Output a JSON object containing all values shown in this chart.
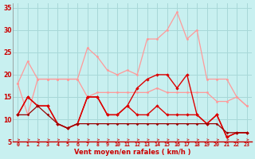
{
  "x": [
    0,
    1,
    2,
    3,
    4,
    5,
    6,
    7,
    8,
    9,
    10,
    11,
    12,
    13,
    14,
    15,
    16,
    17,
    18,
    19,
    20,
    21,
    22,
    23
  ],
  "series": {
    "rafales_light": [
      18,
      23,
      19,
      19,
      19,
      19,
      19,
      26,
      24,
      21,
      20,
      21,
      20,
      28,
      28,
      30,
      34,
      28,
      30,
      19,
      19,
      19,
      15,
      13
    ],
    "moyen_light": [
      18,
      11,
      19,
      19,
      19,
      19,
      19,
      15,
      16,
      16,
      16,
      16,
      16,
      16,
      17,
      16,
      16,
      16,
      16,
      16,
      14,
      14,
      15,
      13
    ],
    "rafales_dark": [
      11,
      15,
      13,
      13,
      9,
      8,
      9,
      15,
      15,
      11,
      11,
      13,
      17,
      19,
      20,
      20,
      17,
      20,
      11,
      9,
      11,
      6,
      7,
      7
    ],
    "moyen_dark1": [
      11,
      15,
      13,
      13,
      9,
      8,
      9,
      15,
      15,
      11,
      11,
      13,
      11,
      11,
      13,
      11,
      11,
      11,
      11,
      9,
      11,
      6,
      7,
      7
    ],
    "moyen_dark2": [
      11,
      11,
      13,
      11,
      9,
      8,
      9,
      9,
      9,
      9,
      9,
      9,
      9,
      9,
      9,
      9,
      9,
      9,
      9,
      9,
      9,
      7,
      7,
      7
    ]
  },
  "xlabel": "Vent moyen/en rafales ( km/h )",
  "ylim": [
    5,
    36
  ],
  "xlim": [
    -0.5,
    23.5
  ],
  "yticks": [
    5,
    10,
    15,
    20,
    25,
    30,
    35
  ],
  "bg_color": "#c8f0f0",
  "grid_color": "#a8d8d8",
  "color_light": "#ff9999",
  "color_dark": "#dd0000",
  "color_darkest": "#990000",
  "arrow_color": "#cc4444"
}
